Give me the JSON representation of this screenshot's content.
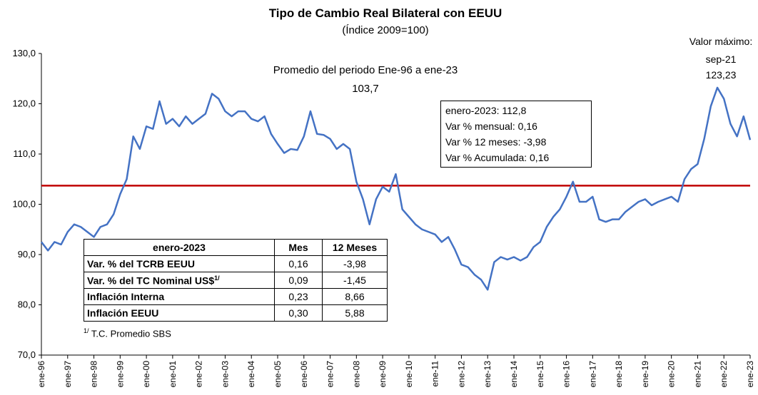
{
  "chart_data": {
    "type": "line",
    "title": "Tipo de Cambio Real Bilateral con EEUU",
    "subtitle": "(Índice 2009=100)",
    "categories": [
      "ene-96",
      null,
      null,
      null,
      "ene-97",
      null,
      null,
      null,
      "ene-98",
      null,
      null,
      null,
      "ene-99",
      null,
      null,
      null,
      "ene-00",
      null,
      null,
      null,
      "ene-01",
      null,
      null,
      null,
      "ene-02",
      null,
      null,
      null,
      "ene-03",
      null,
      null,
      null,
      "ene-04",
      null,
      null,
      null,
      "ene-05",
      null,
      null,
      null,
      "ene-06",
      null,
      null,
      null,
      "ene-07",
      null,
      null,
      null,
      "ene-08",
      null,
      null,
      null,
      "ene-09",
      null,
      null,
      null,
      "ene-10",
      null,
      null,
      null,
      "ene-11",
      null,
      null,
      null,
      "ene-12",
      null,
      null,
      null,
      "ene-13",
      null,
      null,
      null,
      "ene-14",
      null,
      null,
      null,
      "ene-15",
      null,
      null,
      null,
      "ene-16",
      null,
      null,
      null,
      "ene-17",
      null,
      null,
      null,
      "ene-18",
      null,
      null,
      null,
      "ene-19",
      null,
      null,
      null,
      "ene-20",
      null,
      null,
      null,
      "ene-21",
      null,
      null,
      null,
      "ene-22",
      null,
      null,
      null,
      "ene-23"
    ],
    "values": [
      92.5,
      90.8,
      92.5,
      92,
      94.5,
      96,
      95.5,
      94.5,
      93.5,
      95.5,
      96,
      98,
      102,
      105,
      113.5,
      111,
      115.5,
      115,
      120.5,
      116,
      117,
      115.5,
      117.5,
      116,
      117,
      118,
      122,
      121,
      118.5,
      117.5,
      118.5,
      118.5,
      117,
      116.5,
      117.5,
      114,
      112,
      110.2,
      111,
      110.8,
      113.5,
      118.5,
      114,
      113.8,
      113,
      111,
      112,
      111,
      104.5,
      101,
      96,
      101,
      103.5,
      102.5,
      106,
      99,
      97.5,
      96,
      95,
      94.5,
      94,
      92.5,
      93.5,
      91,
      88,
      87.5,
      86,
      85,
      83,
      88.5,
      89.5,
      89,
      89.5,
      88.8,
      89.5,
      91.5,
      92.5,
      95.5,
      97.5,
      99,
      101.5,
      104.5,
      100.5,
      100.5,
      101.5,
      97,
      96.5,
      97,
      97,
      98.5,
      99.5,
      100.5,
      101,
      99.8,
      100.5,
      101,
      101.5,
      100.5,
      105,
      107,
      108,
      113,
      119.5,
      123.2,
      121,
      116,
      113.5,
      117.5,
      112.8
    ],
    "color": "#4472c4",
    "ylim": [
      70,
      130
    ],
    "yticks": [
      {
        "value": 70,
        "label": "70,0"
      },
      {
        "value": 80,
        "label": "80,0"
      },
      {
        "value": 90,
        "label": "90,0"
      },
      {
        "value": 100,
        "label": "100,0"
      },
      {
        "value": 110,
        "label": "110,0"
      },
      {
        "value": 120,
        "label": "120,0"
      },
      {
        "value": 130,
        "label": "130,0"
      }
    ],
    "reference_line": {
      "value": 103.7,
      "label": "103,7",
      "color": "#c00000",
      "text": "Promedio del periodo Ene-96 a ene-23"
    },
    "max_annotation": {
      "title": "Valor máximo:",
      "date": "sep-21",
      "value": "123,23"
    },
    "info_box": [
      "enero-2023: 112,8",
      "Var % mensual: 0,16",
      "Var % 12 meses: -3,98",
      "Var % Acumulada: 0,16"
    ],
    "table": {
      "header": [
        "enero-2023",
        "Mes",
        "12 Meses"
      ],
      "rows": [
        [
          "Var. % del TCRB EEUU",
          "0,16",
          "-3,98"
        ],
        [
          "Var. % del TC Nominal US$",
          "0,09",
          "-1,45"
        ],
        [
          "Inflación Interna",
          "0,23",
          "8,66"
        ],
        [
          "Inflación EEUU",
          "0,30",
          "5,88"
        ]
      ],
      "footnote_marker": "1/",
      "footnote": "T.C. Promedio SBS"
    }
  }
}
